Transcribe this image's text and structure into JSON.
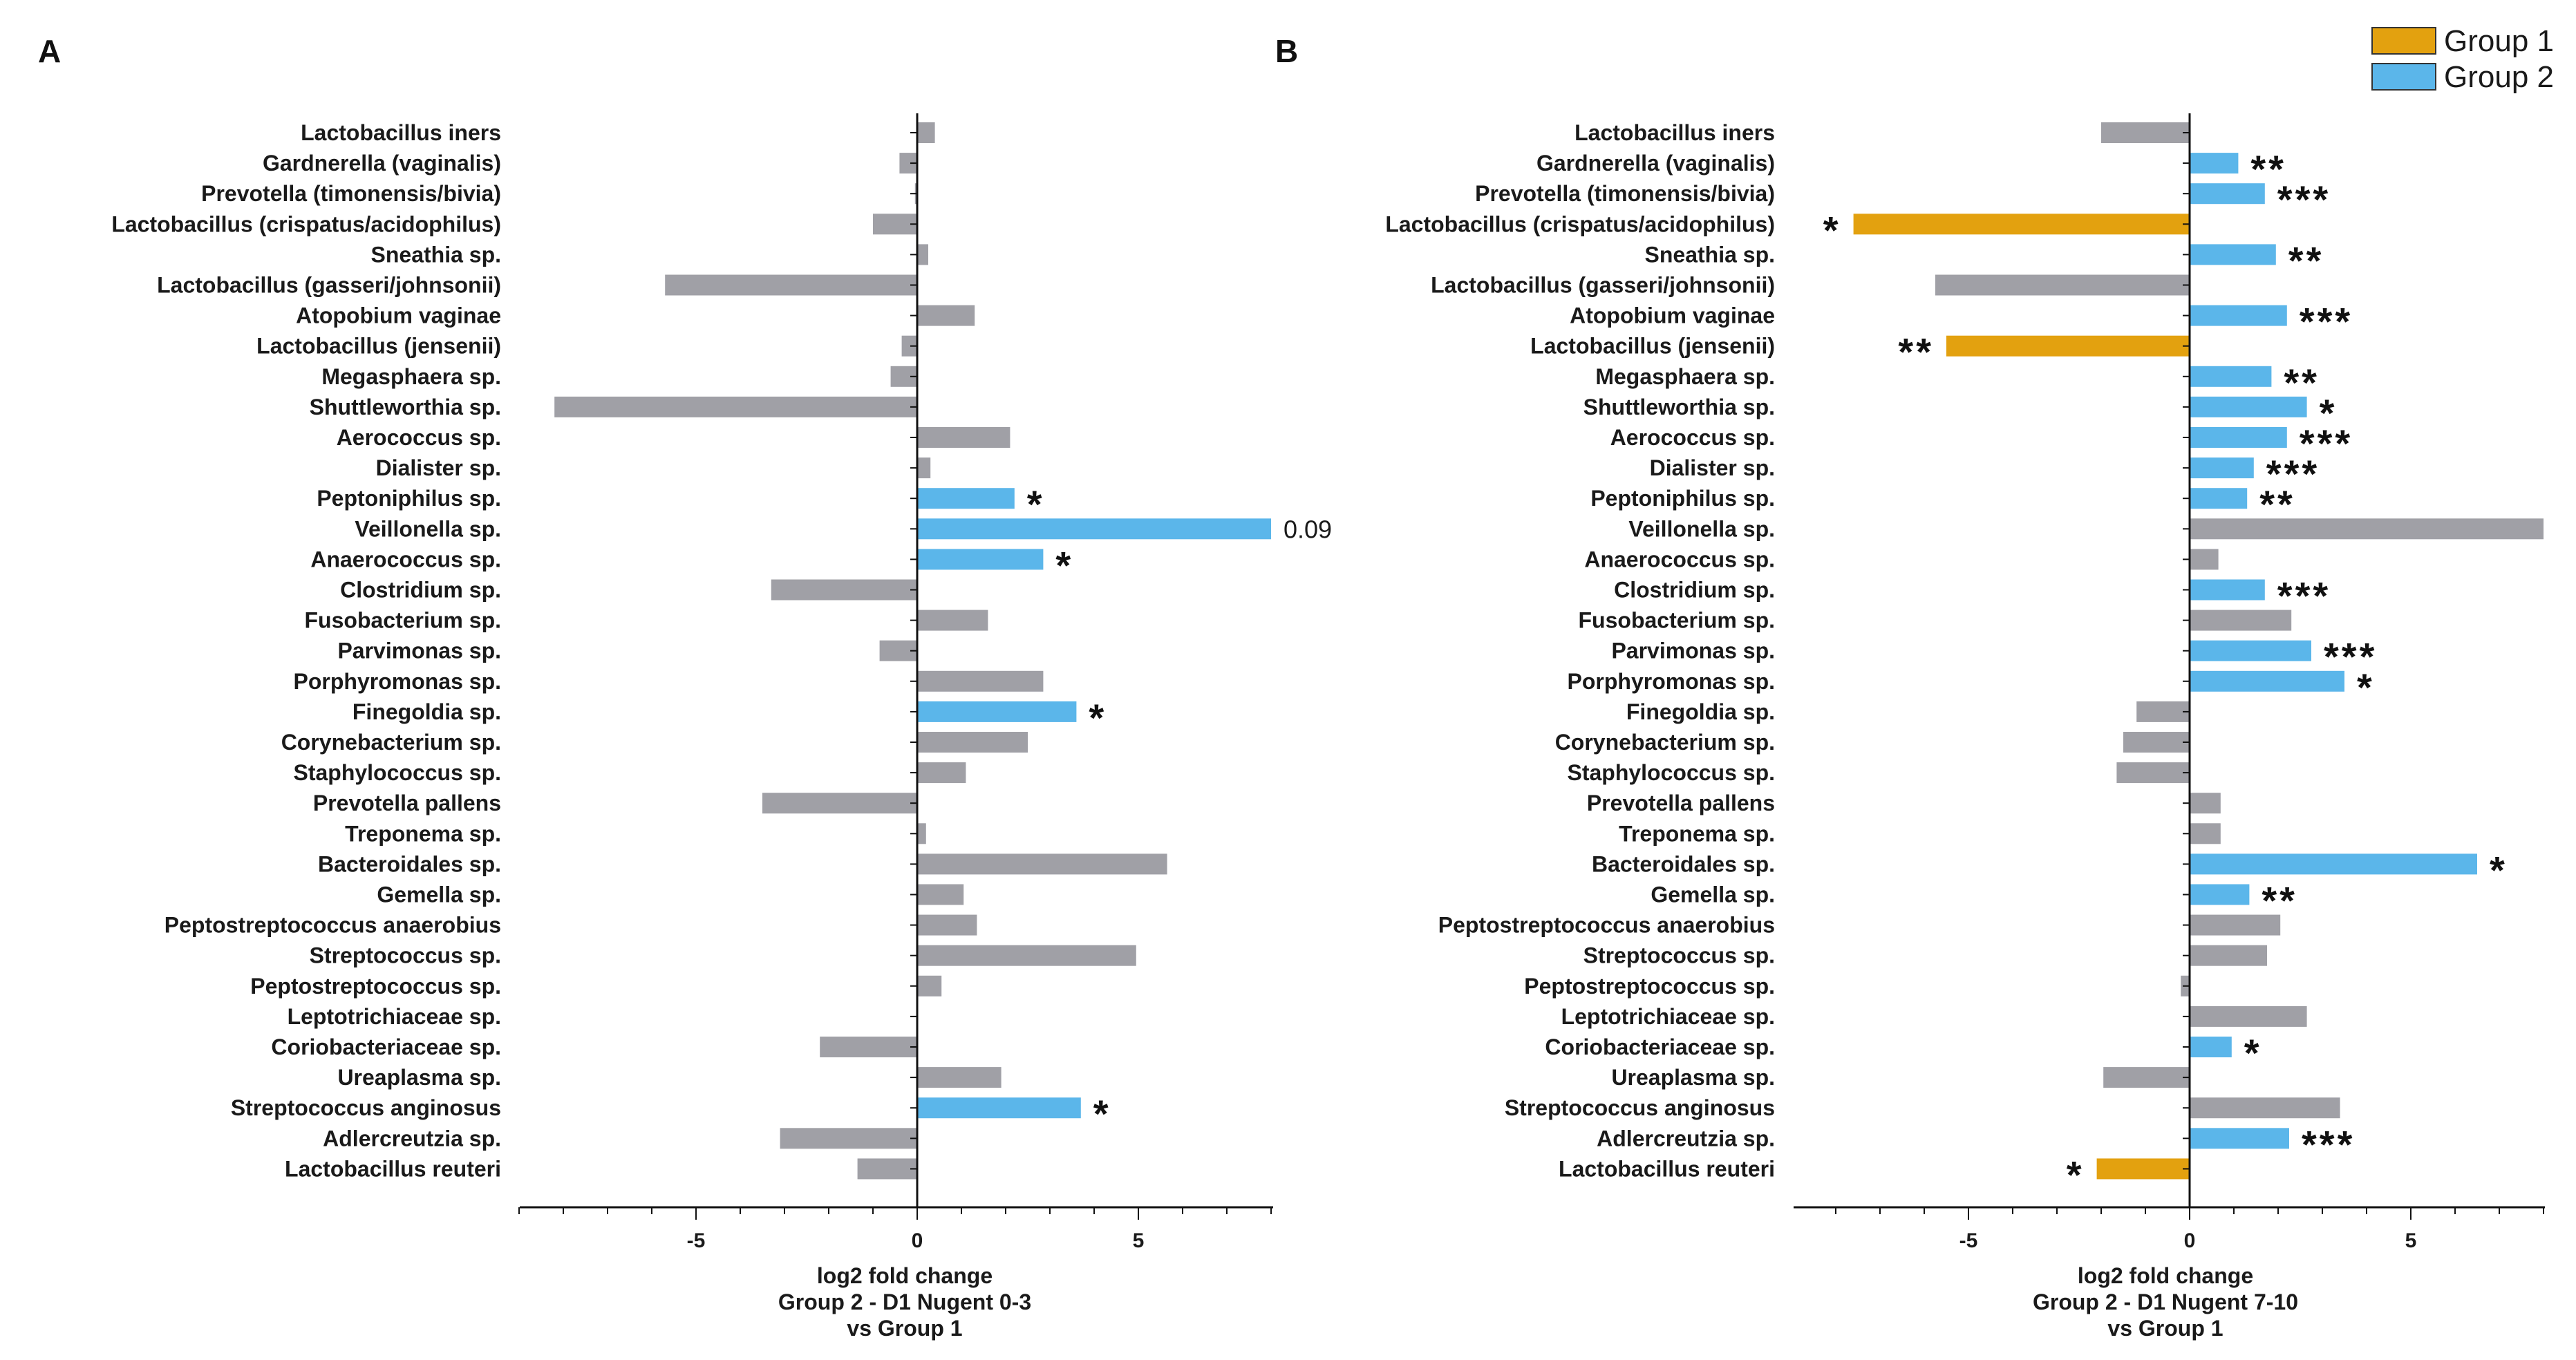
{
  "colors": {
    "grey": "#a0a0a6",
    "group2": "#5bb6ea",
    "group1": "#e3a10f",
    "axis": "#111111"
  },
  "legend": [
    {
      "label": "Group 1",
      "color": "#e3a10f"
    },
    {
      "label": "Group 2",
      "color": "#5bb6ea"
    }
  ],
  "chart_data": [
    {
      "type": "bar",
      "orientation": "horizontal",
      "panel": "A",
      "xlabel": [
        "log2 fold change",
        "Group 2 - D1 Nugent 0-3",
        "vs Group 1"
      ],
      "xlim": [
        -9,
        8
      ],
      "xticks": [
        -5,
        0,
        5
      ],
      "categories": [
        "Lactobacillus iners",
        "Gardnerella (vaginalis)",
        "Prevotella (timonensis/bivia)",
        "Lactobacillus (crispatus/acidophilus)",
        "Sneathia sp.",
        "Lactobacillus (gasseri/johnsonii)",
        "Atopobium vaginae",
        "Lactobacillus (jensenii)",
        "Megasphaera sp.",
        "Shuttleworthia sp.",
        "Aerococcus sp.",
        "Dialister sp.",
        "Peptoniphilus sp.",
        "Veillonella sp.",
        "Anaerococcus sp.",
        "Clostridium sp.",
        "Fusobacterium sp.",
        "Parvimonas sp.",
        "Porphyromonas sp.",
        "Finegoldia sp.",
        "Corynebacterium sp.",
        "Staphylococcus sp.",
        "Prevotella pallens",
        "Treponema sp.",
        "Bacteroidales sp.",
        "Gemella sp.",
        "Peptostreptococcus anaerobius",
        "Streptococcus sp.",
        "Peptostreptococcus sp.",
        "Leptotrichiaceae sp.",
        "Coriobacteriaceae sp.",
        "Ureaplasma sp.",
        "Streptococcus anginosus",
        "Adlercreutzia sp.",
        "Lactobacillus reuteri"
      ],
      "values": [
        0.4,
        -0.4,
        -0.05,
        -1.0,
        0.25,
        -5.7,
        1.3,
        -0.35,
        -0.6,
        -8.2,
        2.1,
        0.3,
        2.2,
        8.0,
        2.85,
        -3.3,
        1.6,
        -0.85,
        2.85,
        3.6,
        2.5,
        1.1,
        -3.5,
        0.2,
        5.65,
        1.05,
        1.35,
        4.95,
        0.55,
        0.0,
        -2.2,
        1.9,
        3.7,
        -3.1,
        -1.35
      ],
      "groups": [
        "none",
        "none",
        "none",
        "none",
        "none",
        "none",
        "none",
        "none",
        "none",
        "none",
        "none",
        "none",
        "group2",
        "group2",
        "group2",
        "none",
        "none",
        "none",
        "none",
        "group2",
        "none",
        "none",
        "none",
        "none",
        "none",
        "none",
        "none",
        "none",
        "none",
        "none",
        "none",
        "none",
        "group2",
        "none",
        "none"
      ],
      "annotations": [
        "",
        "",
        "",
        "",
        "",
        "",
        "",
        "",
        "",
        "",
        "",
        "",
        "*",
        "0.09",
        "*",
        "",
        "",
        "",
        "",
        "*",
        "",
        "",
        "",
        "",
        "",
        "",
        "",
        "",
        "",
        "",
        "",
        "",
        "*",
        "",
        ""
      ]
    },
    {
      "type": "bar",
      "orientation": "horizontal",
      "panel": "B",
      "xlabel": [
        "log2 fold change",
        "Group 2 - D1 Nugent 7-10",
        "vs Group 1"
      ],
      "xlim": [
        -9,
        8
      ],
      "xticks": [
        -5,
        0,
        5
      ],
      "categories": [
        "Lactobacillus iners",
        "Gardnerella (vaginalis)",
        "Prevotella (timonensis/bivia)",
        "Lactobacillus (crispatus/acidophilus)",
        "Sneathia sp.",
        "Lactobacillus (gasseri/johnsonii)",
        "Atopobium vaginae",
        "Lactobacillus (jensenii)",
        "Megasphaera sp.",
        "Shuttleworthia sp.",
        "Aerococcus sp.",
        "Dialister sp.",
        "Peptoniphilus sp.",
        "Veillonella sp.",
        "Anaerococcus sp.",
        "Clostridium sp.",
        "Fusobacterium sp.",
        "Parvimonas sp.",
        "Porphyromonas sp.",
        "Finegoldia sp.",
        "Corynebacterium sp.",
        "Staphylococcus sp.",
        "Prevotella pallens",
        "Treponema sp.",
        "Bacteroidales sp.",
        "Gemella sp.",
        "Peptostreptococcus anaerobius",
        "Streptococcus sp.",
        "Peptostreptococcus sp.",
        "Leptotrichiaceae sp.",
        "Coriobacteriaceae sp.",
        "Ureaplasma sp.",
        "Streptococcus anginosus",
        "Adlercreutzia sp.",
        "Lactobacillus reuteri"
      ],
      "values": [
        -2.0,
        1.1,
        1.7,
        -7.6,
        1.95,
        -5.75,
        2.2,
        -5.5,
        1.85,
        2.65,
        2.2,
        1.45,
        1.3,
        8.0,
        0.65,
        1.7,
        2.3,
        2.75,
        3.5,
        -1.2,
        -1.5,
        -1.65,
        0.7,
        0.7,
        6.5,
        1.35,
        2.05,
        1.75,
        -0.2,
        2.65,
        0.95,
        -1.95,
        3.4,
        2.25,
        -2.1
      ],
      "groups": [
        "none",
        "group2",
        "group2",
        "group1",
        "group2",
        "none",
        "group2",
        "group1",
        "group2",
        "group2",
        "group2",
        "group2",
        "group2",
        "none",
        "none",
        "group2",
        "none",
        "group2",
        "group2",
        "none",
        "none",
        "none",
        "none",
        "none",
        "group2",
        "group2",
        "none",
        "none",
        "none",
        "none",
        "group2",
        "none",
        "none",
        "group2",
        "group1"
      ],
      "annotations": [
        "",
        "**",
        "***",
        "*",
        "**",
        "",
        "***",
        "**",
        "**",
        "*",
        "***",
        "***",
        "**",
        "",
        "",
        "***",
        "",
        "***",
        "*",
        "",
        "",
        "",
        "",
        "",
        "*",
        "**",
        "",
        "",
        "",
        "",
        "*",
        "",
        "",
        "***",
        "*"
      ]
    }
  ]
}
